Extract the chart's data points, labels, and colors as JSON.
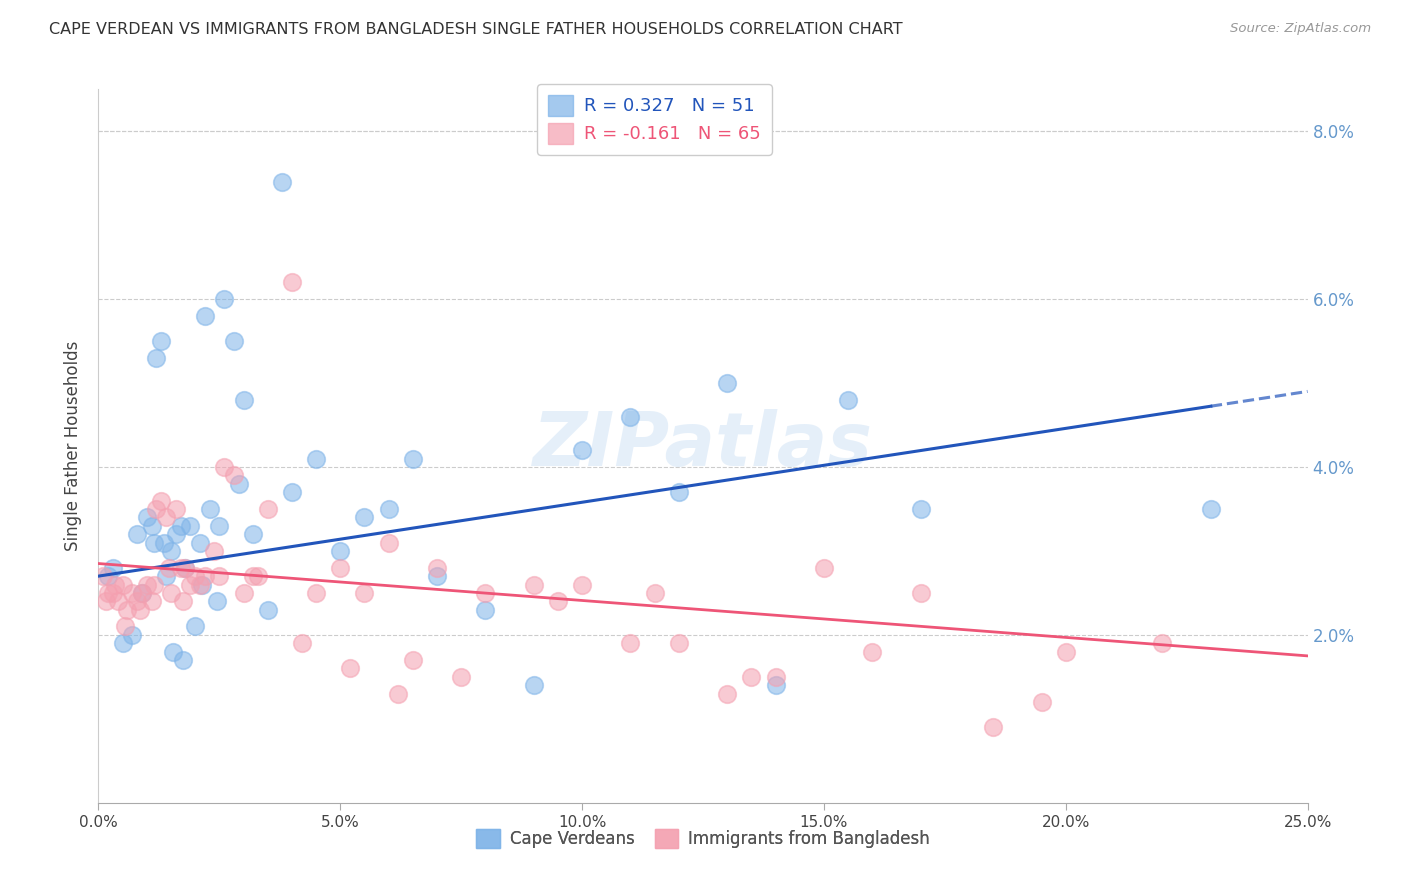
{
  "title": "CAPE VERDEAN VS IMMIGRANTS FROM BANGLADESH SINGLE FATHER HOUSEHOLDS CORRELATION CHART",
  "source": "Source: ZipAtlas.com",
  "ylabel": "Single Father Households",
  "legend_label1": "Cape Verdeans",
  "legend_label2": "Immigrants from Bangladesh",
  "blue_scatter_color": "#7EB3E8",
  "pink_scatter_color": "#F4A0B0",
  "line_blue": "#2255BB",
  "line_pink": "#EE5577",
  "watermark": "ZIPatlas",
  "xlim": [
    0.0,
    25.0
  ],
  "ylim": [
    0.0,
    8.5
  ],
  "blue_line_x0": 0.0,
  "blue_line_y0": 2.7,
  "blue_line_x1": 25.0,
  "blue_line_y1": 4.9,
  "blue_solid_end": 23.0,
  "pink_line_x0": 0.0,
  "pink_line_y0": 2.85,
  "pink_line_x1": 25.0,
  "pink_line_y1": 1.75,
  "cape_verdean_x": [
    0.2,
    0.3,
    0.5,
    0.7,
    0.8,
    0.9,
    1.0,
    1.1,
    1.15,
    1.2,
    1.3,
    1.35,
    1.4,
    1.5,
    1.55,
    1.6,
    1.7,
    1.75,
    1.8,
    1.9,
    2.0,
    2.1,
    2.15,
    2.2,
    2.3,
    2.45,
    2.5,
    2.6,
    2.8,
    2.9,
    3.0,
    3.2,
    3.5,
    3.8,
    4.0,
    4.5,
    5.0,
    5.5,
    6.0,
    6.5,
    7.0,
    8.0,
    9.0,
    10.0,
    11.0,
    12.0,
    13.0,
    14.0,
    15.5,
    17.0,
    23.0
  ],
  "cape_verdean_y": [
    2.7,
    2.8,
    1.9,
    2.0,
    3.2,
    2.5,
    3.4,
    3.3,
    3.1,
    5.3,
    5.5,
    3.1,
    2.7,
    3.0,
    1.8,
    3.2,
    3.3,
    1.7,
    2.8,
    3.3,
    2.1,
    3.1,
    2.6,
    5.8,
    3.5,
    2.4,
    3.3,
    6.0,
    5.5,
    3.8,
    4.8,
    3.2,
    2.3,
    7.4,
    3.7,
    4.1,
    3.0,
    3.4,
    3.5,
    4.1,
    2.7,
    2.3,
    1.4,
    4.2,
    4.6,
    3.7,
    5.0,
    1.4,
    4.8,
    3.5,
    3.5
  ],
  "bangladesh_x": [
    0.1,
    0.15,
    0.2,
    0.3,
    0.35,
    0.4,
    0.5,
    0.55,
    0.6,
    0.7,
    0.8,
    0.85,
    0.9,
    1.0,
    1.1,
    1.15,
    1.2,
    1.3,
    1.4,
    1.45,
    1.5,
    1.6,
    1.7,
    1.75,
    1.8,
    1.9,
    2.0,
    2.1,
    2.2,
    2.4,
    2.5,
    2.6,
    2.8,
    3.0,
    3.2,
    3.3,
    3.5,
    4.0,
    4.2,
    4.5,
    5.0,
    5.2,
    5.5,
    6.0,
    6.2,
    6.5,
    7.0,
    7.5,
    8.0,
    9.0,
    9.5,
    10.0,
    11.0,
    11.5,
    12.0,
    13.0,
    13.5,
    14.0,
    15.0,
    16.0,
    17.0,
    18.5,
    19.5,
    20.0,
    22.0
  ],
  "bangladesh_y": [
    2.7,
    2.4,
    2.5,
    2.5,
    2.6,
    2.4,
    2.6,
    2.1,
    2.3,
    2.5,
    2.4,
    2.3,
    2.5,
    2.6,
    2.4,
    2.6,
    3.5,
    3.6,
    3.4,
    2.8,
    2.5,
    3.5,
    2.8,
    2.4,
    2.8,
    2.6,
    2.7,
    2.6,
    2.7,
    3.0,
    2.7,
    4.0,
    3.9,
    2.5,
    2.7,
    2.7,
    3.5,
    6.2,
    1.9,
    2.5,
    2.8,
    1.6,
    2.5,
    3.1,
    1.3,
    1.7,
    2.8,
    1.5,
    2.5,
    2.6,
    2.4,
    2.6,
    1.9,
    2.5,
    1.9,
    1.3,
    1.5,
    1.5,
    2.8,
    1.8,
    2.5,
    0.9,
    1.2,
    1.8,
    1.9
  ]
}
